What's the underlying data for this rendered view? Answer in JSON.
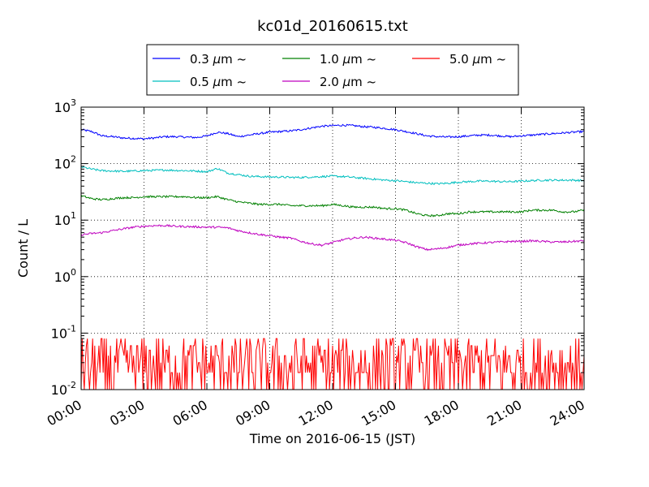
{
  "chart_data": {
    "type": "line",
    "title": "kc01d_20160615.txt",
    "xlabel": "Time on 2016-06-15 (JST)",
    "ylabel": "Count / L",
    "x_ticks": [
      "00:00",
      "03:00",
      "06:00",
      "09:00",
      "12:00",
      "15:00",
      "18:00",
      "21:00",
      "24:00"
    ],
    "x_range_hours": [
      0,
      24
    ],
    "y_scale": "log",
    "ylim": [
      0.01,
      1000
    ],
    "y_ticks": [
      {
        "base": "10",
        "exp": "-2",
        "value": 0.01
      },
      {
        "base": "10",
        "exp": "-1",
        "value": 0.1
      },
      {
        "base": "10",
        "exp": "0",
        "value": 1
      },
      {
        "base": "10",
        "exp": "1",
        "value": 10
      },
      {
        "base": "10",
        "exp": "2",
        "value": 100
      },
      {
        "base": "10",
        "exp": "3",
        "value": 1000
      }
    ],
    "grid": true,
    "legend_position": "top",
    "legend_suffix": "~",
    "series": [
      {
        "name": "0.3 μm",
        "size_label": "0.3",
        "color": "#0000ff",
        "x_hours": [
          0,
          0.5,
          1,
          1.5,
          2,
          2.5,
          3,
          3.5,
          4,
          4.5,
          5,
          5.5,
          6,
          6.5,
          7,
          7.5,
          8,
          8.5,
          9,
          9.5,
          10,
          10.5,
          11,
          11.5,
          12,
          12.5,
          13,
          13.5,
          14,
          14.5,
          15,
          15.5,
          16,
          16.5,
          17,
          17.5,
          18,
          18.5,
          19,
          19.5,
          20,
          20.5,
          21,
          21.5,
          22,
          22.5,
          23,
          23.5,
          24
        ],
        "values": [
          400,
          370,
          310,
          300,
          285,
          280,
          275,
          285,
          300,
          300,
          295,
          290,
          310,
          360,
          340,
          300,
          320,
          340,
          360,
          370,
          380,
          400,
          430,
          460,
          470,
          480,
          470,
          450,
          440,
          420,
          400,
          370,
          340,
          310,
          300,
          295,
          300,
          310,
          320,
          320,
          310,
          300,
          310,
          320,
          330,
          340,
          350,
          360,
          370
        ]
      },
      {
        "name": "0.5 μm",
        "size_label": "0.5",
        "color": "#00bfbf",
        "x_hours": [
          0,
          0.5,
          1,
          1.5,
          2,
          2.5,
          3,
          3.5,
          4,
          4.5,
          5,
          5.5,
          6,
          6.5,
          7,
          7.5,
          8,
          8.5,
          9,
          9.5,
          10,
          10.5,
          11,
          11.5,
          12,
          12.5,
          13,
          13.5,
          14,
          14.5,
          15,
          15.5,
          16,
          16.5,
          17,
          17.5,
          18,
          18.5,
          19,
          19.5,
          20,
          20.5,
          21,
          21.5,
          22,
          22.5,
          23,
          23.5,
          24
        ],
        "values": [
          88,
          80,
          75,
          74,
          73,
          74,
          75,
          76,
          77,
          76,
          75,
          74,
          72,
          82,
          68,
          64,
          60,
          59,
          58,
          58,
          57,
          57,
          58,
          59,
          60,
          59,
          57,
          55,
          53,
          51,
          50,
          48,
          46,
          45,
          44,
          45,
          47,
          48,
          49,
          49,
          48,
          48,
          49,
          50,
          51,
          51,
          51,
          51,
          50
        ]
      },
      {
        "name": "1.0 μm",
        "size_label": "1.0",
        "color": "#008000",
        "x_hours": [
          0,
          0.5,
          1,
          1.5,
          2,
          2.5,
          3,
          3.5,
          4,
          4.5,
          5,
          5.5,
          6,
          6.5,
          7,
          7.5,
          8,
          8.5,
          9,
          9.5,
          10,
          10.5,
          11,
          11.5,
          12,
          12.5,
          13,
          13.5,
          14,
          14.5,
          15,
          15.5,
          16,
          16.5,
          17,
          17.5,
          18,
          18.5,
          19,
          19.5,
          20,
          20.5,
          21,
          21.5,
          22,
          22.5,
          23,
          23.5,
          24
        ],
        "values": [
          27,
          24,
          23,
          24,
          25,
          25,
          26,
          26,
          26,
          26,
          26,
          25,
          25,
          26,
          23,
          21,
          20,
          19,
          19,
          19,
          18,
          18,
          18,
          18,
          19,
          18,
          17,
          17,
          17,
          16,
          16,
          15,
          13,
          12,
          12,
          13,
          13,
          14,
          14,
          14,
          14,
          14,
          14,
          15,
          15,
          15,
          14,
          14,
          15
        ]
      },
      {
        "name": "2.0 μm",
        "size_label": "2.0",
        "color": "#bf00bf",
        "x_hours": [
          0,
          0.5,
          1,
          1.5,
          2,
          2.5,
          3,
          3.5,
          4,
          4.5,
          5,
          5.5,
          6,
          6.5,
          7,
          7.5,
          8,
          8.5,
          9,
          9.5,
          10,
          10.5,
          11,
          11.5,
          12,
          12.5,
          13,
          13.5,
          14,
          14.5,
          15,
          15.5,
          16,
          16.5,
          17,
          17.5,
          18,
          18.5,
          19,
          19.5,
          20,
          20.5,
          21,
          21.5,
          22,
          22.5,
          23,
          23.5,
          24
        ],
        "values": [
          5.5,
          5.8,
          6.0,
          6.5,
          7.0,
          7.5,
          7.8,
          8.0,
          8.0,
          7.8,
          7.7,
          7.6,
          7.5,
          7.5,
          7.3,
          6.5,
          6.0,
          5.6,
          5.3,
          5.0,
          4.8,
          4.2,
          3.8,
          3.6,
          4.0,
          4.5,
          4.8,
          5.0,
          4.8,
          4.6,
          4.4,
          4.0,
          3.4,
          3.0,
          3.1,
          3.3,
          3.6,
          3.8,
          3.9,
          4.0,
          4.1,
          4.2,
          4.2,
          4.3,
          4.2,
          4.1,
          4.1,
          4.2,
          4.3
        ]
      },
      {
        "name": "5.0 μm",
        "size_label": "5.0",
        "color": "#ff0000",
        "x_hours": [
          0,
          0.5,
          1,
          1.5,
          2,
          2.5,
          3,
          3.5,
          4,
          4.5,
          5,
          5.5,
          6,
          6.5,
          7,
          7.5,
          8,
          8.5,
          9,
          9.5,
          10,
          10.5,
          11,
          11.5,
          12,
          12.5,
          13,
          13.5,
          14,
          14.5,
          15,
          15.5,
          16,
          16.5,
          17,
          17.5,
          18,
          18.5,
          19,
          19.5,
          20,
          20.5,
          21,
          21.5,
          22,
          22.5,
          23,
          23.5,
          24
        ],
        "values": [
          0.08,
          0.02,
          0.03,
          0.06,
          0.01,
          0.04,
          0.02,
          0.05,
          0.01,
          0.07,
          0.02,
          0.03,
          0.01,
          0.05,
          0.02,
          0.04,
          0.01,
          0.03,
          0.06,
          0.02,
          0.01,
          0.04,
          0.02,
          0.05,
          0.01,
          0.03,
          0.02,
          0.07,
          0.01,
          0.04,
          0.02,
          0.08,
          0.01,
          0.03,
          0.02,
          0.05,
          0.01,
          0.03,
          0.04,
          0.02,
          0.01,
          0.03,
          0.02,
          0.05,
          0.01,
          0.04,
          0.02,
          0.06,
          0.01
        ]
      }
    ]
  }
}
